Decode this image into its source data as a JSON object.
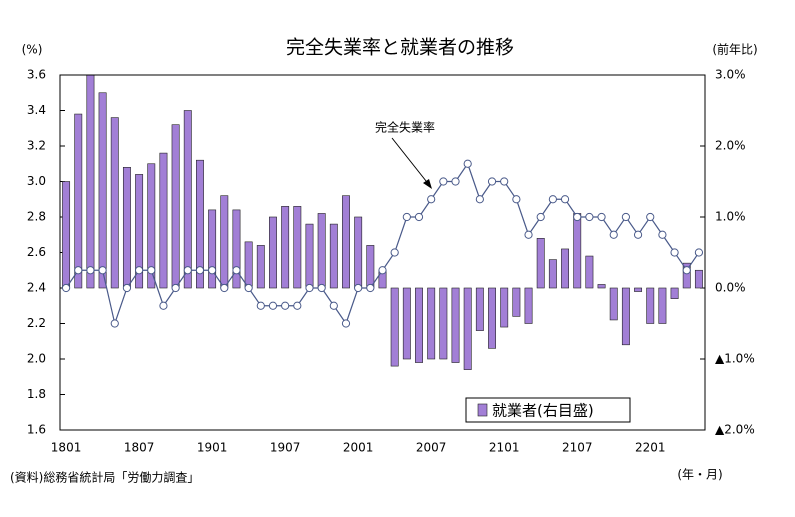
{
  "chart_data": {
    "type": "bar",
    "title": "完全失業率と就業者の推移",
    "y_label": "(%)",
    "y2_label": "(前年比)",
    "x_label": "(年・月)",
    "source": "(資料)総務省統計局「労働力調査」",
    "categories": [
      "1801",
      null,
      null,
      null,
      null,
      null,
      "1807",
      null,
      null,
      null,
      null,
      null,
      "1901",
      null,
      null,
      null,
      null,
      null,
      "1907",
      null,
      null,
      null,
      null,
      null,
      "2001",
      null,
      null,
      null,
      null,
      null,
      "2007",
      null,
      null,
      null,
      null,
      null,
      "2101",
      null,
      null,
      null,
      null,
      null,
      "2107",
      null,
      null,
      null,
      null,
      null,
      "2201",
      null,
      null,
      null,
      null
    ],
    "series": [
      {
        "name": "完全失業率",
        "type": "line",
        "color": "#4a5a8a",
        "values": [
          2.4,
          2.5,
          2.5,
          2.5,
          2.2,
          2.4,
          2.5,
          2.5,
          2.3,
          2.4,
          2.5,
          2.5,
          2.5,
          2.4,
          2.5,
          2.4,
          2.3,
          2.3,
          2.3,
          2.3,
          2.4,
          2.4,
          2.3,
          2.2,
          2.4,
          2.4,
          2.5,
          2.6,
          2.8,
          2.8,
          2.9,
          3.0,
          3.0,
          3.1,
          2.9,
          3.0,
          3.0,
          2.9,
          2.7,
          2.8,
          2.9,
          2.9,
          2.8,
          2.8,
          2.8,
          2.7,
          2.8,
          2.7,
          2.8,
          2.7,
          2.6,
          2.5,
          2.6
        ]
      },
      {
        "name": "就業者(右目盛)",
        "type": "bar",
        "axis": "y2",
        "color": "#a27fd6",
        "values": [
          1.5,
          2.45,
          3.0,
          2.75,
          2.4,
          1.7,
          1.6,
          1.75,
          1.9,
          2.3,
          2.5,
          1.8,
          1.1,
          1.3,
          1.1,
          0.65,
          0.6,
          1.0,
          1.15,
          1.15,
          0.9,
          1.05,
          0.9,
          1.3,
          1.0,
          0.6,
          0.25,
          -1.1,
          -1.0,
          -1.05,
          -1.0,
          -1.0,
          -1.05,
          -1.15,
          -0.6,
          -0.85,
          -0.55,
          -0.4,
          -0.5,
          0.7,
          0.4,
          0.55,
          1.05,
          0.45,
          0.05,
          -0.45,
          -0.8,
          -0.05,
          -0.5,
          -0.5,
          -0.15,
          0.35,
          0.25
        ]
      }
    ],
    "ylim": [
      1.6,
      3.6
    ],
    "yticks": [
      1.6,
      1.8,
      {
        "value": 2,
        "label": "2.0"
      },
      2.2,
      2.4,
      2.6,
      2.8,
      {
        "value": 3,
        "label": "3.0"
      },
      3.2,
      3.4,
      3.6
    ],
    "y2lim": [
      -2,
      3
    ],
    "y2ticks": [
      {
        "value": 3,
        "label": "3.0%"
      },
      {
        "value": 2,
        "label": "2.0%"
      },
      {
        "value": 1,
        "label": "1.0%"
      },
      {
        "value": 0,
        "label": "0.0%"
      },
      {
        "value": -1,
        "label": "▲1.0%"
      },
      {
        "value": -2,
        "label": "▲2.0%"
      }
    ]
  }
}
